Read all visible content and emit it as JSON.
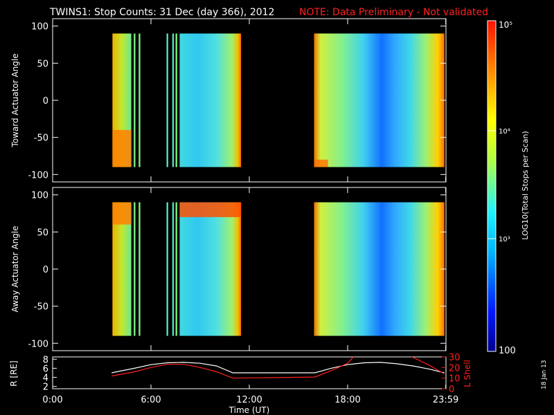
{
  "title": "TWINS1: Stop Counts: 31 Dec (day 366), 2012",
  "note": "NOTE: Data Preliminary - Not validated",
  "date_stamp": "18 Jan 13",
  "colors": {
    "background": "#000000",
    "axes": "#ffffff",
    "note": "#ff2020",
    "rshell": "#ffffff",
    "lshell": "#ff2020"
  },
  "chart_data": [
    {
      "type": "heatmap",
      "panel": "toward",
      "ylabel": "Toward Actuator Angle",
      "ylim": [
        -110,
        110
      ],
      "yticks": [
        100,
        50,
        0,
        -50,
        -100
      ],
      "xlim": [
        0,
        24
      ],
      "intervals_hours": [
        [
          3.65,
          4.8
        ],
        [
          4.95,
          5.05
        ],
        [
          5.25,
          5.35
        ],
        [
          6.95,
          7.05
        ],
        [
          7.3,
          7.4
        ],
        [
          7.5,
          7.6
        ],
        [
          7.75,
          11.5
        ],
        [
          15.95,
          23.9
        ]
      ],
      "angle_range": [
        -90,
        90
      ]
    },
    {
      "type": "heatmap",
      "panel": "away",
      "ylabel": "Away Actuator Angle",
      "ylim": [
        -110,
        110
      ],
      "yticks": [
        100,
        50,
        0,
        -50,
        -100
      ],
      "xlim": [
        0,
        24
      ],
      "intervals_hours": [
        [
          3.65,
          4.8
        ],
        [
          4.95,
          5.05
        ],
        [
          5.25,
          5.35
        ],
        [
          6.95,
          7.05
        ],
        [
          7.3,
          7.4
        ],
        [
          7.5,
          7.6
        ],
        [
          7.75,
          11.5
        ],
        [
          15.95,
          23.9
        ]
      ],
      "angle_range": [
        -90,
        90
      ]
    },
    {
      "type": "line",
      "panel": "ephemeris",
      "ylabel": "R [RE]",
      "y2label": "L Shell",
      "yticks": [
        "8",
        "6",
        "4",
        "2"
      ],
      "y2ticks": [
        "30",
        "20",
        "10",
        "0"
      ],
      "ylim": [
        1.5,
        8.5
      ],
      "y2lim": [
        0,
        30
      ],
      "xlabel": "Time (UT)",
      "xticks": [
        "0:00",
        "6:00",
        "12:00",
        "18:00",
        "23:59"
      ],
      "xtick_hours": [
        0,
        6,
        12,
        18,
        23.983
      ],
      "series": [
        {
          "key": "R",
          "x": [
            3.6,
            5,
            6,
            7,
            8,
            9,
            10,
            11,
            16,
            17,
            18,
            19,
            20,
            21,
            22,
            23,
            23.9
          ],
          "values": [
            5,
            6,
            6.8,
            7.2,
            7.3,
            7.1,
            6.5,
            5,
            5,
            6,
            6.8,
            7.2,
            7.3,
            7.0,
            6.5,
            5.8,
            5.0
          ]
        },
        {
          "key": "L",
          "x": [
            3.6,
            5,
            6,
            7,
            8,
            9,
            10,
            11,
            16,
            17,
            18,
            18.4,
            21.8,
            23,
            23.9
          ],
          "values": [
            12,
            16,
            20,
            23,
            23,
            20,
            16,
            10,
            11,
            17,
            24,
            31,
            31,
            22,
            14
          ]
        }
      ]
    },
    {
      "type": "colorbar",
      "label": "LOG10(Total Stops per Scan)",
      "ticks": [
        "10⁵",
        "10⁴",
        "10³",
        "100"
      ],
      "range": [
        100,
        100000
      ]
    }
  ]
}
